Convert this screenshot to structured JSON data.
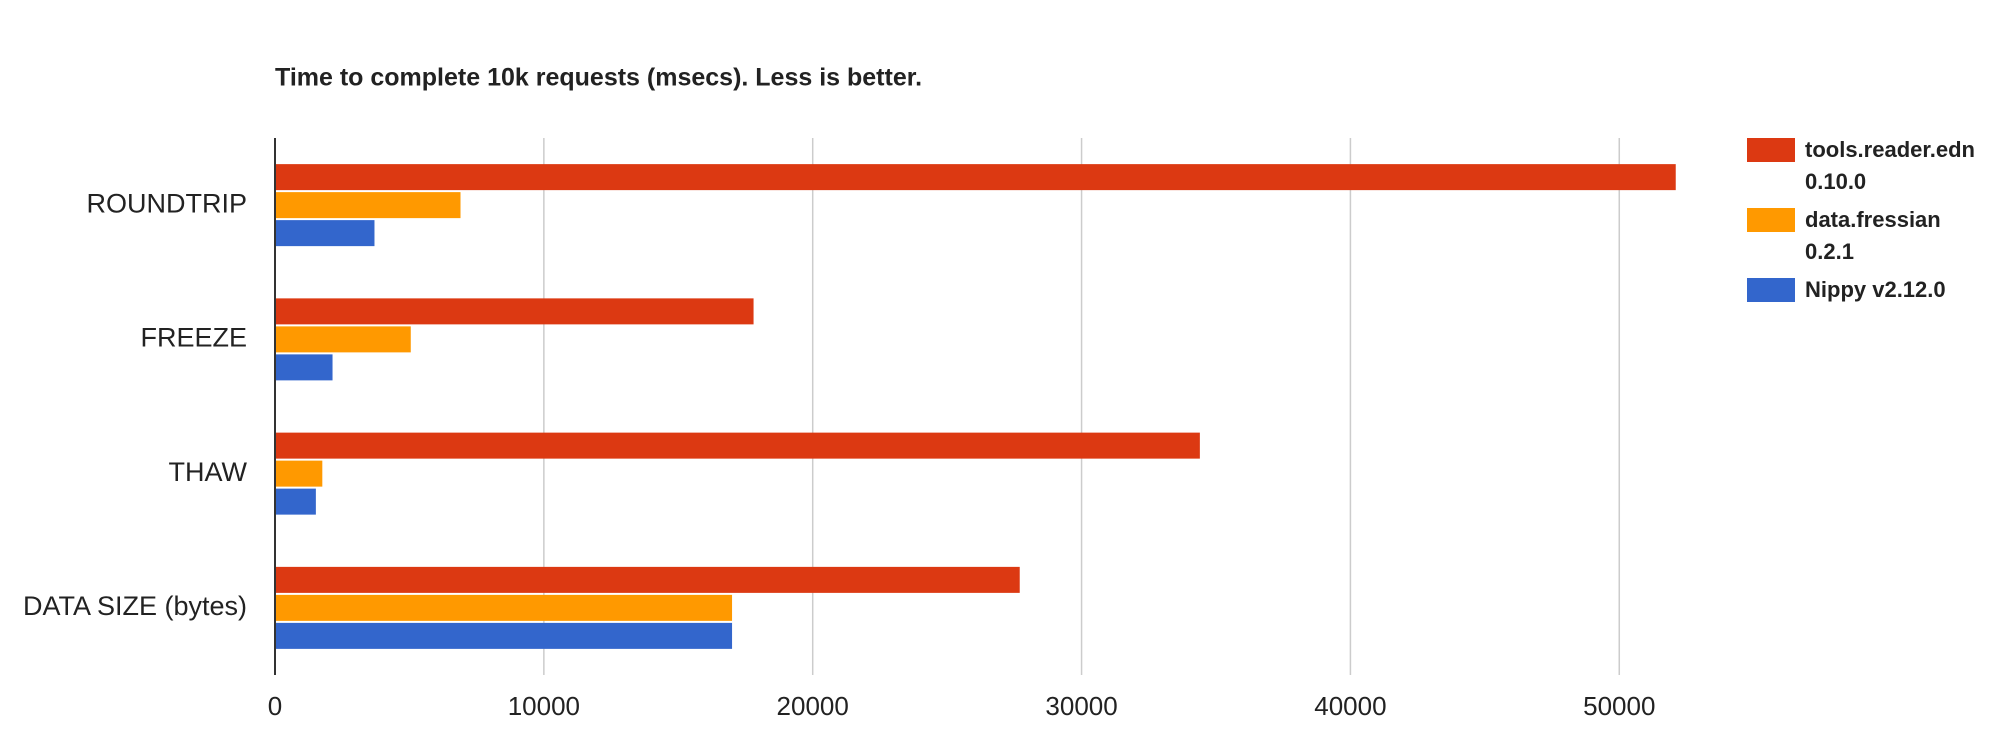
{
  "chart_data": {
    "type": "bar",
    "orientation": "horizontal",
    "title": "Time to complete 10k requests (msecs). Less is better.",
    "categories": [
      "ROUNDTRIP",
      "FREEZE",
      "THAW",
      "DATA SIZE (bytes)"
    ],
    "series": [
      {
        "name": "tools.reader.edn 0.10.0",
        "color": "#dc3912",
        "values": [
          52100,
          17800,
          34400,
          27700
        ]
      },
      {
        "name": "data.fressian 0.2.1",
        "color": "#ff9900",
        "values": [
          6900,
          5050,
          1760,
          17000
        ]
      },
      {
        "name": "Nippy v2.12.0",
        "color": "#3366cc",
        "values": [
          3700,
          2140,
          1520,
          17000
        ]
      }
    ],
    "xlim": [
      0,
      53300
    ],
    "xticks": [
      0,
      10000,
      20000,
      30000,
      40000,
      50000
    ],
    "grid": true,
    "legend": "right"
  }
}
